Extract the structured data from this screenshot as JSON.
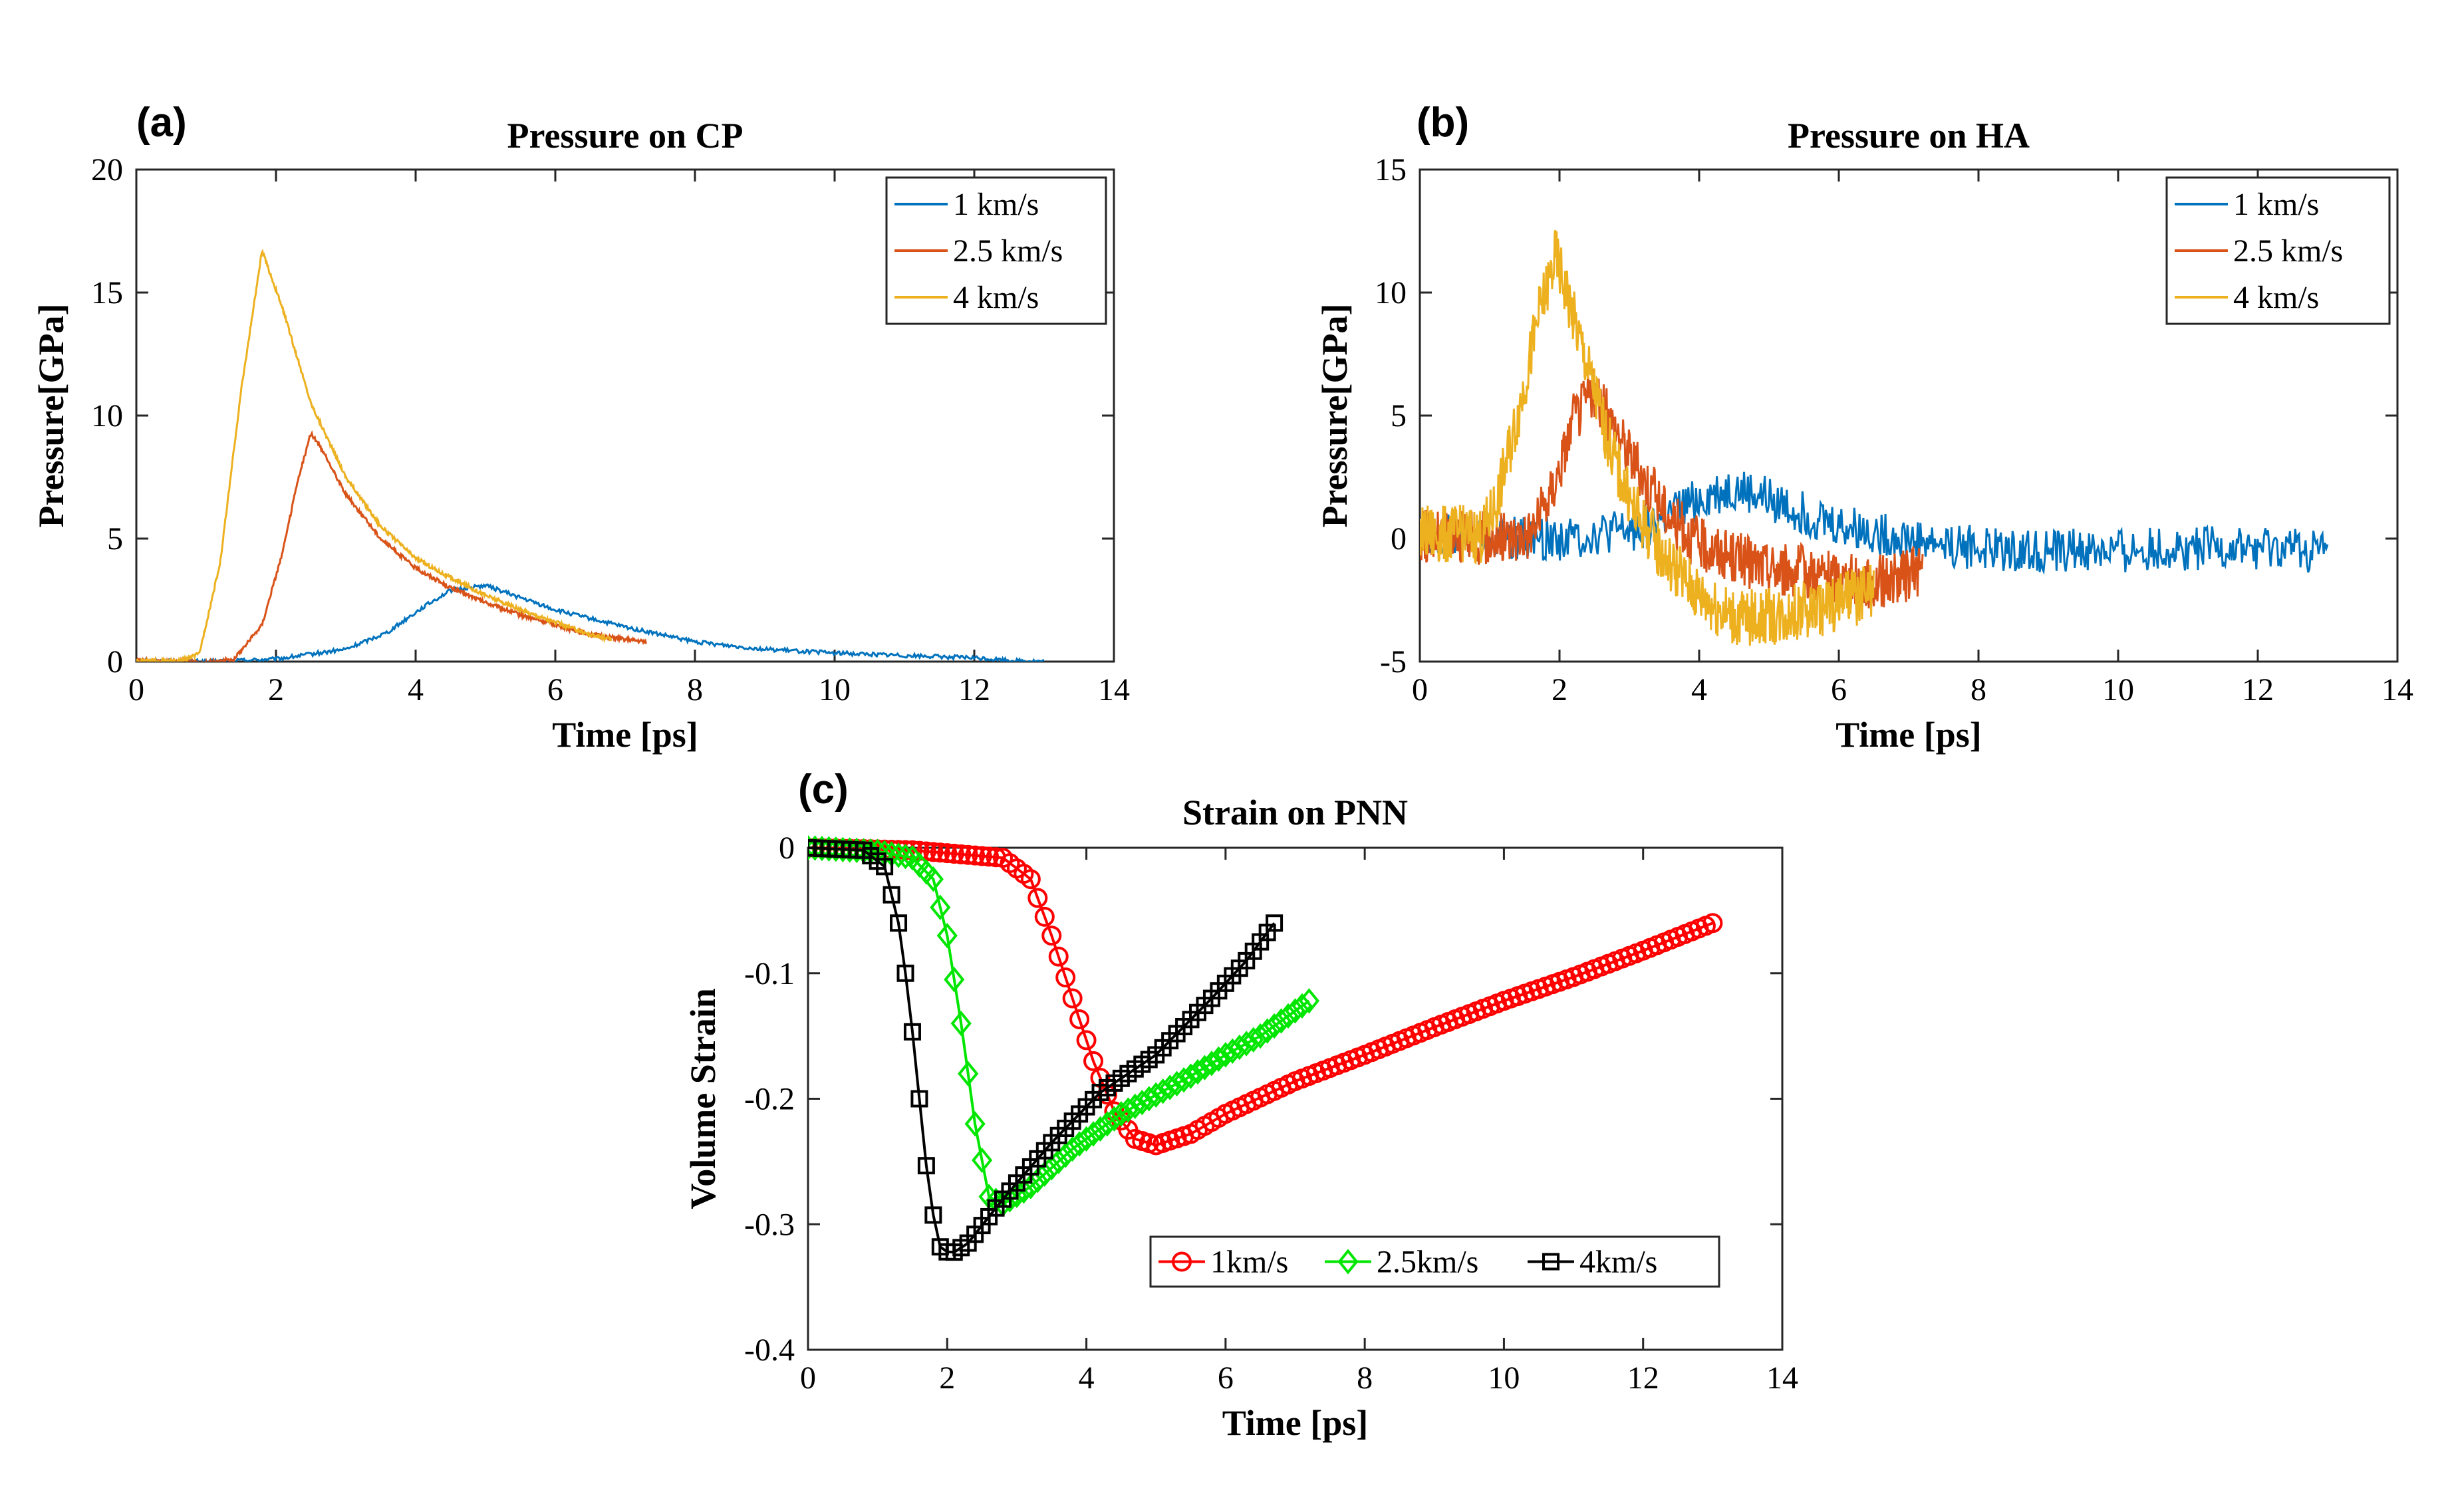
{
  "colors": {
    "blue": "#0072BD",
    "red": "#D95319",
    "yellow": "#EDB120",
    "c_red": "#FF0000",
    "c_green": "#00E600",
    "c_black": "#000000"
  },
  "chart_data": [
    {
      "id": "a",
      "type": "line",
      "panel_label": "(a)",
      "title": "Pressure on CP",
      "xlabel": "Time [ps]",
      "ylabel": "Pressure[GPa]",
      "xlim": [
        0,
        14
      ],
      "ylim": [
        0,
        20
      ],
      "xticks": [
        0,
        2,
        4,
        6,
        8,
        10,
        12,
        14
      ],
      "yticks": [
        0,
        5,
        10,
        15,
        20
      ],
      "legend": {
        "position": "top-right",
        "entries": [
          "1 km/s",
          "2.5 km/s",
          "4 km/s"
        ]
      },
      "series": [
        {
          "name": "1 km/s",
          "color": "#0072BD",
          "noise": 0.08,
          "x_end": 13.0,
          "points": [
            [
              0,
              0.05
            ],
            [
              1.0,
              0.0
            ],
            [
              2.0,
              0.1
            ],
            [
              3.0,
              0.5
            ],
            [
              3.6,
              1.2
            ],
            [
              4.1,
              2.2
            ],
            [
              4.5,
              2.9
            ],
            [
              5.0,
              3.1
            ],
            [
              5.5,
              2.6
            ],
            [
              6.0,
              2.1
            ],
            [
              7.0,
              1.4
            ],
            [
              8.0,
              0.8
            ],
            [
              9.0,
              0.5
            ],
            [
              10.0,
              0.35
            ],
            [
              11.0,
              0.25
            ],
            [
              12.0,
              0.15
            ],
            [
              12.5,
              0.05
            ],
            [
              13.0,
              0.0
            ]
          ]
        },
        {
          "name": "2.5 km/s",
          "color": "#D95319",
          "noise": 0.08,
          "x_end": 7.3,
          "points": [
            [
              0,
              0.05
            ],
            [
              1.0,
              -0.05
            ],
            [
              1.4,
              0.1
            ],
            [
              1.8,
              1.5
            ],
            [
              2.1,
              4.5
            ],
            [
              2.3,
              7.2
            ],
            [
              2.5,
              9.3
            ],
            [
              2.7,
              8.4
            ],
            [
              3.0,
              6.8
            ],
            [
              3.5,
              5.0
            ],
            [
              4.0,
              3.8
            ],
            [
              4.5,
              3.0
            ],
            [
              5.0,
              2.4
            ],
            [
              5.5,
              1.9
            ],
            [
              6.0,
              1.5
            ],
            [
              6.5,
              1.1
            ],
            [
              7.0,
              0.9
            ],
            [
              7.3,
              0.8
            ]
          ]
        },
        {
          "name": "4 km/s",
          "color": "#EDB120",
          "noise": 0.08,
          "x_end": 6.8,
          "points": [
            [
              0,
              0.05
            ],
            [
              0.6,
              0.0
            ],
            [
              0.9,
              0.3
            ],
            [
              1.2,
              4.0
            ],
            [
              1.5,
              11.0
            ],
            [
              1.8,
              16.7
            ],
            [
              2.1,
              14.3
            ],
            [
              2.5,
              10.5
            ],
            [
              3.0,
              7.5
            ],
            [
              3.5,
              5.5
            ],
            [
              4.0,
              4.2
            ],
            [
              4.5,
              3.4
            ],
            [
              5.0,
              2.7
            ],
            [
              5.5,
              2.1
            ],
            [
              6.0,
              1.6
            ],
            [
              6.5,
              1.1
            ],
            [
              6.8,
              0.9
            ]
          ]
        }
      ]
    },
    {
      "id": "b",
      "type": "line",
      "panel_label": "(b)",
      "title": "Pressure on HA",
      "xlabel": "Time [ps]",
      "ylabel": "Pressure[GPa]",
      "xlim": [
        0,
        14
      ],
      "ylim": [
        -5,
        15
      ],
      "xticks": [
        0,
        2,
        4,
        6,
        8,
        10,
        12,
        14
      ],
      "yticks": [
        -5,
        0,
        5,
        10,
        15
      ],
      "legend": {
        "position": "top-right",
        "entries": [
          "1 km/s",
          "2.5 km/s",
          "4 km/s"
        ]
      },
      "series": [
        {
          "name": "1 km/s",
          "color": "#0072BD",
          "noise": 0.9,
          "x_end": 13.0,
          "points": [
            [
              0,
              0.2
            ],
            [
              1.0,
              0.0
            ],
            [
              2.0,
              0.0
            ],
            [
              3.0,
              0.3
            ],
            [
              3.5,
              0.8
            ],
            [
              4.0,
              1.6
            ],
            [
              4.5,
              2.0
            ],
            [
              5.0,
              1.6
            ],
            [
              5.5,
              1.0
            ],
            [
              6.0,
              0.5
            ],
            [
              7.0,
              0.0
            ],
            [
              8.0,
              -0.4
            ],
            [
              9.0,
              -0.5
            ],
            [
              10.0,
              -0.5
            ],
            [
              11.0,
              -0.4
            ],
            [
              12.0,
              -0.4
            ],
            [
              13.0,
              -0.5
            ]
          ]
        },
        {
          "name": "2.5 km/s",
          "color": "#D95319",
          "noise": 1.1,
          "x_end": 7.2,
          "points": [
            [
              0,
              0.1
            ],
            [
              1.2,
              0.0
            ],
            [
              1.6,
              0.3
            ],
            [
              1.9,
              2.0
            ],
            [
              2.2,
              4.8
            ],
            [
              2.45,
              6.0
            ],
            [
              2.8,
              4.5
            ],
            [
              3.2,
              2.5
            ],
            [
              3.6,
              0.8
            ],
            [
              4.0,
              -0.2
            ],
            [
              4.5,
              -0.8
            ],
            [
              5.0,
              -1.2
            ],
            [
              5.5,
              -1.3
            ],
            [
              6.0,
              -1.6
            ],
            [
              6.5,
              -1.8
            ],
            [
              7.0,
              -1.5
            ],
            [
              7.2,
              -1.2
            ]
          ]
        },
        {
          "name": "4 km/s",
          "color": "#EDB120",
          "noise": 1.2,
          "x_end": 6.5,
          "points": [
            [
              0,
              0.2
            ],
            [
              0.9,
              0.2
            ],
            [
              1.1,
              1.5
            ],
            [
              1.4,
              5.0
            ],
            [
              1.7,
              9.0
            ],
            [
              1.95,
              11.5
            ],
            [
              2.3,
              8.0
            ],
            [
              2.7,
              4.0
            ],
            [
              3.0,
              1.5
            ],
            [
              3.5,
              -0.8
            ],
            [
              4.0,
              -2.3
            ],
            [
              4.5,
              -3.2
            ],
            [
              5.0,
              -3.2
            ],
            [
              5.5,
              -3.0
            ],
            [
              6.0,
              -2.6
            ],
            [
              6.5,
              -2.2
            ]
          ]
        }
      ]
    },
    {
      "id": "c",
      "type": "line",
      "panel_label": "(c)",
      "title": "Strain on PNN",
      "xlabel": "Time [ps]",
      "ylabel": "Volume Strain",
      "xlim": [
        0,
        14
      ],
      "ylim": [
        -0.4,
        0
      ],
      "xticks": [
        0,
        2,
        4,
        6,
        8,
        10,
        12,
        14
      ],
      "yticks": [
        -0.4,
        -0.3,
        -0.2,
        -0.1,
        0
      ],
      "legend": {
        "position": "bottom-right",
        "orientation": "horizontal",
        "entries": [
          "1km/s",
          "2.5km/s",
          "4km/s"
        ]
      },
      "series": [
        {
          "name": "1km/s",
          "color": "#FF0000",
          "marker": "circle",
          "step": 0.1,
          "x_start": 0,
          "x_end": 13.0,
          "points": [
            [
              0,
              0.0
            ],
            [
              1.5,
              -0.002
            ],
            [
              2.8,
              -0.008
            ],
            [
              3.2,
              -0.025
            ],
            [
              3.5,
              -0.07
            ],
            [
              3.8,
              -0.12
            ],
            [
              4.1,
              -0.17
            ],
            [
              4.4,
              -0.21
            ],
            [
              4.7,
              -0.232
            ],
            [
              5.0,
              -0.237
            ],
            [
              5.5,
              -0.228
            ],
            [
              6.0,
              -0.212
            ],
            [
              7.0,
              -0.186
            ],
            [
              8.0,
              -0.165
            ],
            [
              9.0,
              -0.143
            ],
            [
              10.0,
              -0.122
            ],
            [
              11.0,
              -0.103
            ],
            [
              12.0,
              -0.082
            ],
            [
              13.0,
              -0.06
            ]
          ]
        },
        {
          "name": "2.5km/s",
          "color": "#00E600",
          "marker": "diamond",
          "step": 0.1,
          "x_start": 0,
          "x_end": 7.2,
          "points": [
            [
              0,
              0.0
            ],
            [
              1.0,
              -0.003
            ],
            [
              1.5,
              -0.008
            ],
            [
              1.8,
              -0.025
            ],
            [
              2.0,
              -0.07
            ],
            [
              2.2,
              -0.14
            ],
            [
              2.4,
              -0.22
            ],
            [
              2.6,
              -0.278
            ],
            [
              2.8,
              -0.284
            ],
            [
              3.2,
              -0.27
            ],
            [
              3.8,
              -0.24
            ],
            [
              4.5,
              -0.212
            ],
            [
              5.5,
              -0.182
            ],
            [
              6.0,
              -0.165
            ],
            [
              6.5,
              -0.15
            ],
            [
              7.2,
              -0.122
            ]
          ]
        },
        {
          "name": "4km/s",
          "color": "#000000",
          "marker": "square",
          "step": 0.1,
          "x_start": 0,
          "x_end": 6.7,
          "points": [
            [
              0,
              0.0
            ],
            [
              0.8,
              -0.002
            ],
            [
              1.1,
              -0.015
            ],
            [
              1.3,
              -0.06
            ],
            [
              1.45,
              -0.12
            ],
            [
              1.6,
              -0.2
            ],
            [
              1.75,
              -0.28
            ],
            [
              1.9,
              -0.318
            ],
            [
              2.05,
              -0.324
            ],
            [
              2.3,
              -0.315
            ],
            [
              2.8,
              -0.28
            ],
            [
              3.5,
              -0.235
            ],
            [
              4.2,
              -0.195
            ],
            [
              5.0,
              -0.165
            ],
            [
              5.8,
              -0.12
            ],
            [
              6.3,
              -0.09
            ],
            [
              6.7,
              -0.06
            ]
          ]
        }
      ]
    }
  ]
}
